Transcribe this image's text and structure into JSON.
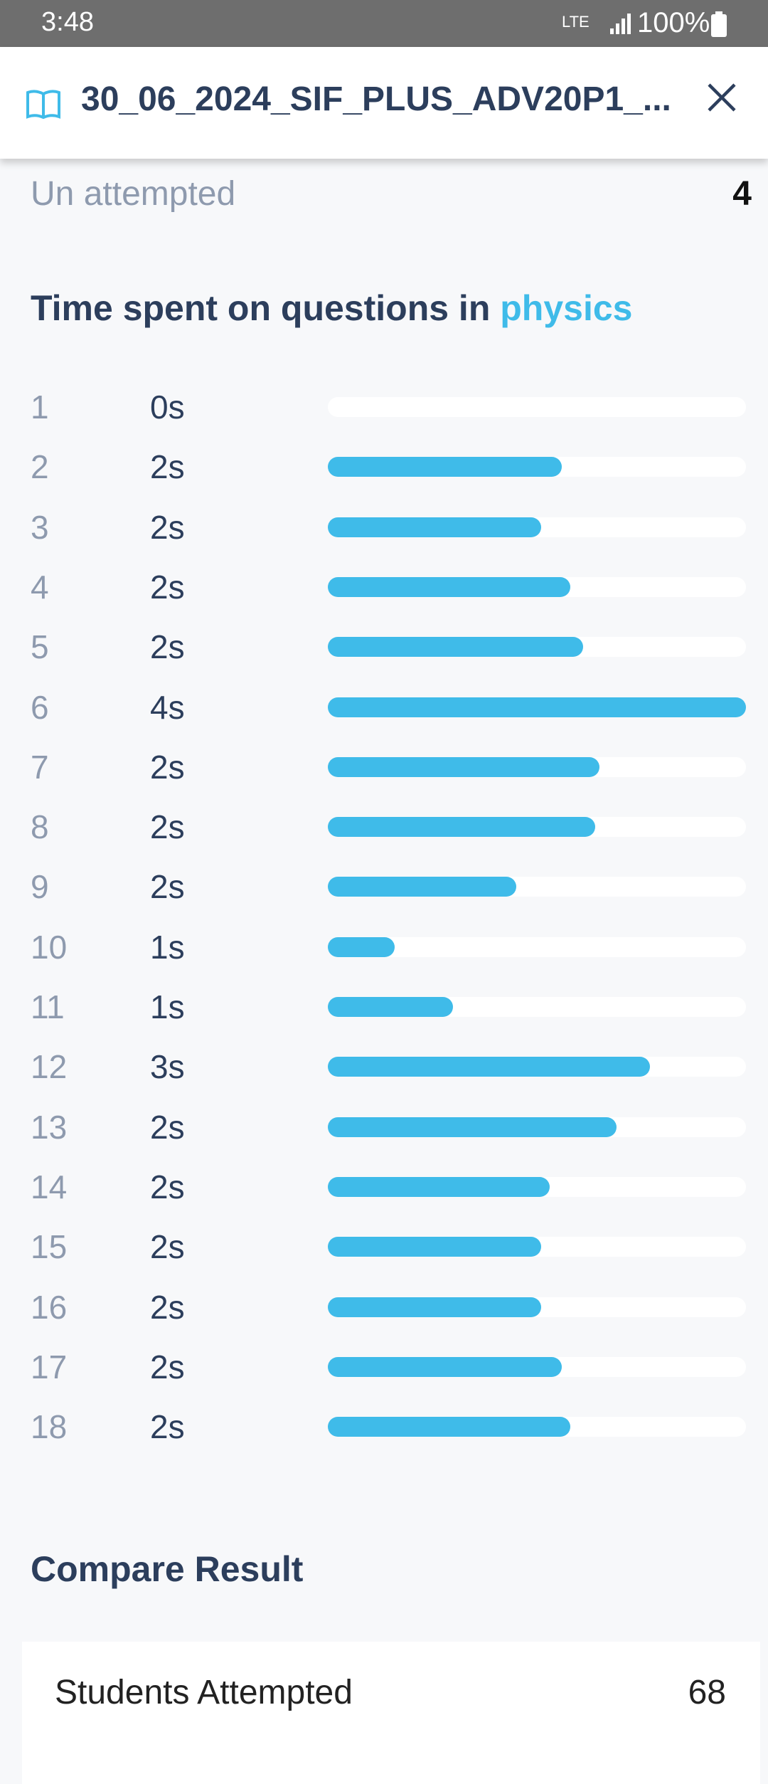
{
  "status_bar": {
    "time": "3:48",
    "network": "LTE",
    "battery": "100%"
  },
  "header": {
    "title": "30_06_2024_SIF_PLUS_ADV20P1_..."
  },
  "summary": {
    "label": "Un attempted",
    "value": "4"
  },
  "section": {
    "title": "Time spent on questions in ",
    "subject": "physics",
    "rows": [
      {
        "question": 1,
        "time": "0s",
        "bar": 0
      },
      {
        "question": 2,
        "time": "2s",
        "bar": 56
      },
      {
        "question": 3,
        "time": "2s",
        "bar": 51
      },
      {
        "question": 4,
        "time": "2s",
        "bar": 58
      },
      {
        "question": 5,
        "time": "2s",
        "bar": 61
      },
      {
        "question": 6,
        "time": "4s",
        "bar": 100
      },
      {
        "question": 7,
        "time": "2s",
        "bar": 65
      },
      {
        "question": 8,
        "time": "2s",
        "bar": 64
      },
      {
        "question": 9,
        "time": "2s",
        "bar": 45
      },
      {
        "question": 10,
        "time": "1s",
        "bar": 16
      },
      {
        "question": 11,
        "time": "1s",
        "bar": 30
      },
      {
        "question": 12,
        "time": "3s",
        "bar": 77
      },
      {
        "question": 13,
        "time": "2s",
        "bar": 69
      },
      {
        "question": 14,
        "time": "2s",
        "bar": 53
      },
      {
        "question": 15,
        "time": "2s",
        "bar": 51
      },
      {
        "question": 16,
        "time": "2s",
        "bar": 51
      },
      {
        "question": 17,
        "time": "2s",
        "bar": 56
      },
      {
        "question": 18,
        "time": "2s",
        "bar": 58
      }
    ]
  },
  "compare": {
    "title": "Compare Result",
    "rows": [
      {
        "label": "Students Attempted",
        "value": "68"
      }
    ]
  }
}
